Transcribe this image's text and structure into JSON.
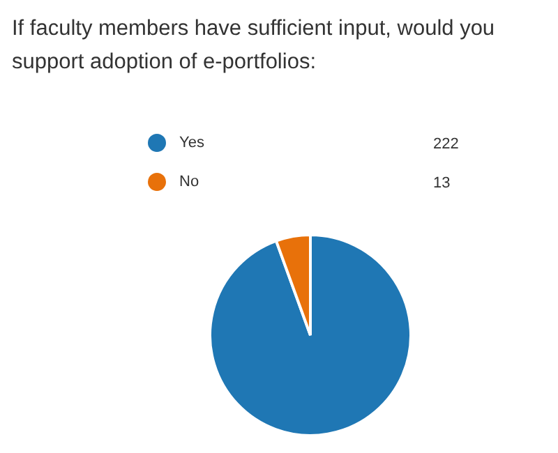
{
  "chart_data": {
    "type": "pie",
    "title": "If faculty members have sufficient input, would you support adoption of e-portfolios:",
    "categories": [
      "Yes",
      "No"
    ],
    "values": [
      222,
      13
    ],
    "colors": [
      "#1f77b4",
      "#e8710a"
    ],
    "legend": "top",
    "data_labels": true
  }
}
